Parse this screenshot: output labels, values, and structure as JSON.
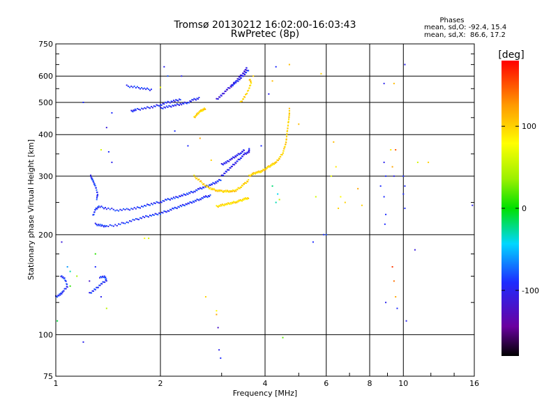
{
  "chart_data": {
    "type": "scatter",
    "title": "Tromsø 20130212 16:02:00-16:03:43",
    "subtitle": "RwPretec (8p)",
    "xlabel": "Frequency [MHz]",
    "ylabel": "Stationary phase Virtual Height [km]",
    "x_scale": "log",
    "y_scale": "log",
    "xlim": [
      1,
      16
    ],
    "ylim": [
      75,
      750
    ],
    "x_ticks": [
      1,
      2,
      4,
      6,
      8,
      10,
      16
    ],
    "x_tick_labels": [
      "1",
      "2",
      "4",
      "6",
      "8",
      "10",
      "16"
    ],
    "y_ticks": [
      75,
      100,
      200,
      300,
      400,
      500,
      600,
      750
    ],
    "y_tick_labels": [
      "75",
      "100",
      "200",
      "300",
      "400",
      "500",
      "600",
      "750"
    ],
    "grid": true,
    "stats": {
      "heading": "Phases",
      "line_o": "mean, sd,O: -92.4, 15.4",
      "line_x": "mean, sd,X:  86.6, 17.2"
    },
    "colorbar": {
      "label": "[deg]",
      "range": [
        -180,
        180
      ],
      "ticks": [
        100,
        0,
        -100
      ],
      "tick_labels": [
        "100",
        "0",
        "-100"
      ]
    },
    "traces": [
      {
        "name": "",
        "phase": -90,
        "points": [
          [
            1.0,
            130
          ],
          [
            1.03,
            132
          ],
          [
            1.05,
            135
          ],
          [
            1.08,
            140
          ],
          [
            1.06,
            148
          ],
          [
            1.03,
            150
          ]
        ]
      },
      {
        "name": "",
        "phase": -90,
        "points": [
          [
            1.25,
            133
          ],
          [
            1.3,
            137
          ],
          [
            1.35,
            142
          ],
          [
            1.4,
            146
          ],
          [
            1.38,
            150
          ],
          [
            1.33,
            148
          ]
        ]
      },
      {
        "name": "",
        "phase": -90,
        "points": [
          [
            1.3,
            215
          ],
          [
            1.35,
            213
          ],
          [
            1.4,
            212
          ],
          [
            1.5,
            214
          ],
          [
            1.6,
            218
          ],
          [
            1.7,
            222
          ],
          [
            1.8,
            226
          ],
          [
            1.9,
            229
          ],
          [
            2.0,
            232
          ],
          [
            2.1,
            236
          ],
          [
            2.2,
            240
          ],
          [
            2.3,
            244
          ],
          [
            2.4,
            248
          ],
          [
            2.5,
            252
          ],
          [
            2.6,
            256
          ],
          [
            2.7,
            260
          ],
          [
            2.8,
            262
          ]
        ]
      },
      {
        "name": "",
        "phase": -90,
        "points": [
          [
            1.28,
            228
          ],
          [
            1.3,
            238
          ],
          [
            1.33,
            243
          ],
          [
            1.4,
            240
          ],
          [
            1.5,
            237
          ],
          [
            1.6,
            238
          ],
          [
            1.7,
            240
          ],
          [
            1.8,
            244
          ],
          [
            1.9,
            248
          ],
          [
            2.0,
            251
          ],
          [
            2.1,
            255
          ],
          [
            2.2,
            258
          ],
          [
            2.3,
            262
          ],
          [
            2.4,
            266
          ],
          [
            2.5,
            270
          ],
          [
            2.6,
            275
          ],
          [
            2.7,
            279
          ],
          [
            2.8,
            283
          ],
          [
            2.9,
            288
          ],
          [
            3.0,
            294
          ]
        ]
      },
      {
        "name": "",
        "phase": -90,
        "points": [
          [
            1.26,
            300
          ],
          [
            1.28,
            290
          ],
          [
            1.3,
            280
          ],
          [
            1.32,
            265
          ],
          [
            1.31,
            255
          ]
        ]
      },
      {
        "name": "",
        "phase": -100,
        "points": [
          [
            3.0,
            300
          ],
          [
            3.1,
            310
          ],
          [
            3.2,
            320
          ],
          [
            3.3,
            330
          ],
          [
            3.4,
            340
          ],
          [
            3.5,
            350
          ],
          [
            3.6,
            355
          ],
          [
            3.6,
            365
          ]
        ]
      },
      {
        "name": "",
        "phase": -100,
        "points": [
          [
            3.0,
            325
          ],
          [
            3.1,
            330
          ],
          [
            3.2,
            338
          ],
          [
            3.3,
            345
          ],
          [
            3.4,
            352
          ],
          [
            3.5,
            360
          ]
        ]
      },
      {
        "name": "",
        "phase": -95,
        "points": [
          [
            2.0,
            480
          ],
          [
            2.1,
            485
          ],
          [
            2.2,
            490
          ],
          [
            2.3,
            495
          ],
          [
            2.4,
            500
          ],
          [
            2.5,
            510
          ],
          [
            2.6,
            515
          ]
        ]
      },
      {
        "name": "",
        "phase": -95,
        "points": [
          [
            1.65,
            470
          ],
          [
            1.7,
            475
          ],
          [
            1.8,
            480
          ],
          [
            1.9,
            485
          ],
          [
            2.0,
            492
          ],
          [
            2.1,
            500
          ],
          [
            2.2,
            505
          ],
          [
            2.3,
            512
          ]
        ]
      },
      {
        "name": "",
        "phase": -110,
        "points": [
          [
            2.9,
            510
          ],
          [
            3.0,
            525
          ],
          [
            3.1,
            545
          ],
          [
            3.2,
            560
          ],
          [
            3.3,
            580
          ],
          [
            3.4,
            600
          ],
          [
            3.5,
            620
          ],
          [
            3.55,
            640
          ]
        ]
      },
      {
        "name": "",
        "phase": -95,
        "points": [
          [
            3.2,
            560
          ],
          [
            3.3,
            575
          ],
          [
            3.4,
            590
          ],
          [
            3.5,
            610
          ],
          [
            3.6,
            630
          ]
        ]
      },
      {
        "name": "",
        "phase": -90,
        "points": [
          [
            1.6,
            560
          ],
          [
            1.7,
            555
          ],
          [
            1.8,
            550
          ],
          [
            1.9,
            545
          ]
        ]
      },
      {
        "name": "",
        "phase": 100,
        "points": [
          [
            3.6,
            300
          ],
          [
            3.7,
            305
          ],
          [
            3.8,
            308
          ],
          [
            3.9,
            310
          ],
          [
            4.0,
            315
          ],
          [
            4.1,
            320
          ],
          [
            4.2,
            325
          ],
          [
            4.3,
            330
          ],
          [
            4.4,
            340
          ],
          [
            4.5,
            352
          ],
          [
            4.55,
            365
          ],
          [
            4.6,
            380
          ],
          [
            4.62,
            400
          ],
          [
            4.65,
            420
          ],
          [
            4.68,
            445
          ],
          [
            4.7,
            460
          ],
          [
            4.7,
            480
          ]
        ]
      },
      {
        "name": "",
        "phase": 100,
        "points": [
          [
            2.5,
            300
          ],
          [
            2.6,
            290
          ],
          [
            2.7,
            280
          ],
          [
            2.8,
            275
          ],
          [
            2.9,
            272
          ],
          [
            3.0,
            270
          ],
          [
            3.1,
            270
          ],
          [
            3.2,
            270
          ],
          [
            3.3,
            272
          ],
          [
            3.4,
            278
          ],
          [
            3.5,
            285
          ],
          [
            3.6,
            292
          ]
        ]
      },
      {
        "name": "",
        "phase": 95,
        "points": [
          [
            2.9,
            243
          ],
          [
            3.0,
            245
          ],
          [
            3.1,
            247
          ],
          [
            3.2,
            249
          ],
          [
            3.3,
            251
          ],
          [
            3.4,
            253
          ],
          [
            3.5,
            256
          ],
          [
            3.6,
            258
          ]
        ]
      },
      {
        "name": "",
        "phase": 100,
        "points": [
          [
            2.5,
            450
          ],
          [
            2.55,
            460
          ],
          [
            2.6,
            470
          ],
          [
            2.65,
            475
          ],
          [
            2.7,
            480
          ]
        ]
      },
      {
        "name": "",
        "phase": 100,
        "points": [
          [
            3.4,
            500
          ],
          [
            3.5,
            520
          ],
          [
            3.6,
            550
          ],
          [
            3.65,
            575
          ],
          [
            3.6,
            590
          ]
        ]
      }
    ],
    "scatter": [
      [
        1.01,
        110,
        -10
      ],
      [
        1.04,
        190,
        -110
      ],
      [
        1.08,
        160,
        -60
      ],
      [
        1.2,
        95,
        -100
      ],
      [
        1.3,
        160,
        -90
      ],
      [
        1.3,
        175,
        10
      ],
      [
        1.4,
        120,
        50
      ],
      [
        1.42,
        355,
        -90
      ],
      [
        1.4,
        420,
        -110
      ],
      [
        1.45,
        465,
        -90
      ],
      [
        1.2,
        500,
        -90
      ],
      [
        1.35,
        360,
        60
      ],
      [
        1.45,
        330,
        -100
      ],
      [
        1.8,
        195,
        80
      ],
      [
        1.85,
        195,
        60
      ],
      [
        2.05,
        640,
        -100
      ],
      [
        2.1,
        600,
        -80
      ],
      [
        2.0,
        555,
        70
      ],
      [
        2.6,
        390,
        120
      ],
      [
        2.9,
        115,
        120
      ],
      [
        2.9,
        118,
        80
      ],
      [
        2.93,
        105,
        -120
      ],
      [
        2.95,
        90,
        -100
      ],
      [
        2.98,
        85,
        -90
      ],
      [
        2.7,
        130,
        100
      ],
      [
        2.4,
        370,
        -90
      ],
      [
        2.8,
        335,
        100
      ],
      [
        3.9,
        370,
        -90
      ],
      [
        4.1,
        530,
        -100
      ],
      [
        4.3,
        640,
        -90
      ],
      [
        4.5,
        98,
        20
      ],
      [
        4.2,
        280,
        -20
      ],
      [
        4.3,
        250,
        -30
      ],
      [
        4.35,
        265,
        -40
      ],
      [
        4.4,
        255,
        50
      ],
      [
        5.0,
        430,
        110
      ],
      [
        5.5,
        190,
        -90
      ],
      [
        5.8,
        610,
        100
      ],
      [
        5.9,
        200,
        -90
      ],
      [
        5.6,
        260,
        60
      ],
      [
        6.3,
        380,
        110
      ],
      [
        6.4,
        320,
        90
      ],
      [
        6.2,
        300,
        70
      ],
      [
        6.5,
        240,
        100
      ],
      [
        6.6,
        260,
        80
      ],
      [
        6.8,
        250,
        100
      ],
      [
        7.4,
        275,
        120
      ],
      [
        7.6,
        245,
        100
      ],
      [
        8.6,
        280,
        -90
      ],
      [
        8.8,
        570,
        -100
      ],
      [
        8.8,
        330,
        -100
      ],
      [
        8.9,
        300,
        -90
      ],
      [
        8.8,
        260,
        -90
      ],
      [
        8.9,
        230,
        -90
      ],
      [
        8.85,
        215,
        -90
      ],
      [
        8.9,
        125,
        -100
      ],
      [
        9.4,
        570,
        110
      ],
      [
        9.2,
        360,
        90
      ],
      [
        9.5,
        360,
        150
      ],
      [
        9.3,
        320,
        120
      ],
      [
        9.4,
        300,
        -100
      ],
      [
        9.3,
        160,
        160
      ],
      [
        9.4,
        145,
        140
      ],
      [
        9.5,
        130,
        120
      ],
      [
        9.6,
        120,
        -90
      ],
      [
        10.1,
        650,
        -100
      ],
      [
        10.0,
        300,
        -90
      ],
      [
        10.1,
        280,
        -90
      ],
      [
        10.0,
        265,
        -90
      ],
      [
        10.1,
        240,
        -90
      ],
      [
        10.2,
        110,
        -100
      ],
      [
        10.8,
        180,
        -110
      ],
      [
        11.0,
        330,
        60
      ],
      [
        11.8,
        330,
        100
      ],
      [
        15.8,
        245,
        -100
      ],
      [
        6.0,
        200,
        -80
      ],
      [
        3.7,
        600,
        100
      ],
      [
        4.2,
        580,
        110
      ],
      [
        4.7,
        650,
        110
      ],
      [
        2.3,
        600,
        -100
      ],
      [
        2.2,
        410,
        -90
      ],
      [
        1.1,
        140,
        10
      ],
      [
        1.15,
        150,
        40
      ],
      [
        1.1,
        155,
        -30
      ],
      [
        1.25,
        145,
        -120
      ],
      [
        1.35,
        130,
        -100
      ]
    ]
  }
}
